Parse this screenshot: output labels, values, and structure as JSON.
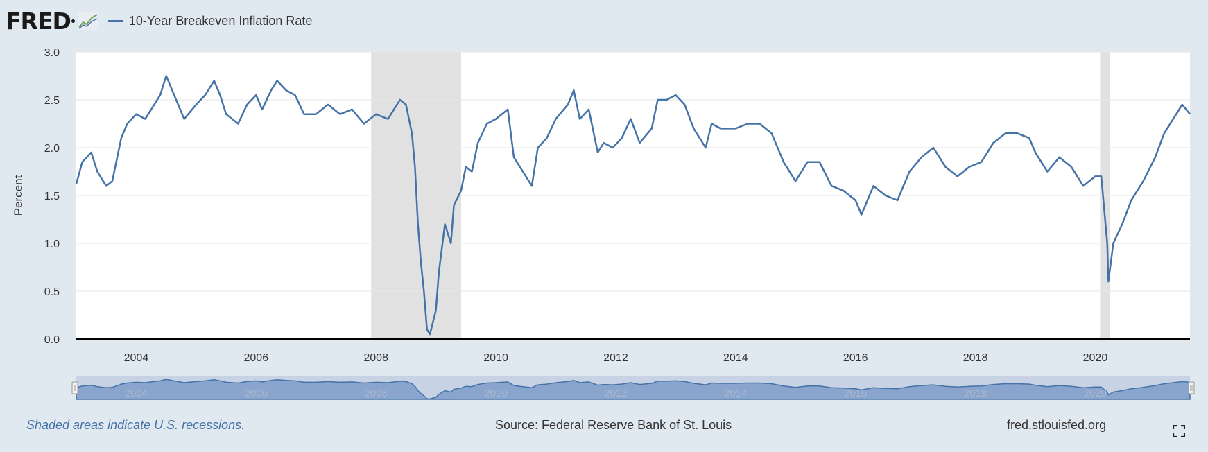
{
  "header": {
    "logo_text": "FRED",
    "legend_label": "10-Year Breakeven Inflation Rate"
  },
  "footer": {
    "recession_note": "Shaded areas indicate U.S. recessions.",
    "source": "Source: Federal Reserve Bank of St. Louis",
    "site": "fred.stlouisfed.org"
  },
  "colors": {
    "series": "#4572a7",
    "recession": "#e1e1e1",
    "navigator_fill": "#7f9cc9",
    "background": "#e1e9f0"
  },
  "chart_data": {
    "type": "line",
    "title": "10-Year Breakeven Inflation Rate",
    "ylabel": "Percent",
    "xlabel": "",
    "xlim": [
      2003.0,
      2021.58
    ],
    "ylim": [
      0,
      3.0
    ],
    "y_ticks": [
      "0.0",
      "0.5",
      "1.0",
      "1.5",
      "2.0",
      "2.5",
      "3.0"
    ],
    "x_ticks": [
      "2004",
      "2006",
      "2008",
      "2010",
      "2012",
      "2014",
      "2016",
      "2018",
      "2020"
    ],
    "recessions": [
      [
        2007.92,
        2009.42
      ],
      [
        2020.08,
        2020.25
      ]
    ],
    "series": [
      {
        "name": "10-Year Breakeven Inflation Rate",
        "x": [
          2003.0,
          2003.1,
          2003.25,
          2003.35,
          2003.5,
          2003.6,
          2003.75,
          2003.85,
          2004.0,
          2004.15,
          2004.3,
          2004.4,
          2004.5,
          2004.7,
          2004.8,
          2005.0,
          2005.15,
          2005.3,
          2005.4,
          2005.5,
          2005.7,
          2005.85,
          2006.0,
          2006.1,
          2006.25,
          2006.35,
          2006.5,
          2006.65,
          2006.8,
          2007.0,
          2007.2,
          2007.4,
          2007.6,
          2007.8,
          2008.0,
          2008.2,
          2008.4,
          2008.5,
          2008.6,
          2008.65,
          2008.7,
          2008.75,
          2008.8,
          2008.85,
          2008.9,
          2009.0,
          2009.05,
          2009.15,
          2009.25,
          2009.3,
          2009.42,
          2009.5,
          2009.6,
          2009.7,
          2009.85,
          2010.0,
          2010.2,
          2010.3,
          2010.45,
          2010.6,
          2010.7,
          2010.85,
          2011.0,
          2011.2,
          2011.3,
          2011.4,
          2011.55,
          2011.7,
          2011.8,
          2011.95,
          2012.1,
          2012.25,
          2012.4,
          2012.6,
          2012.7,
          2012.85,
          2013.0,
          2013.15,
          2013.3,
          2013.5,
          2013.6,
          2013.75,
          2014.0,
          2014.2,
          2014.4,
          2014.6,
          2014.8,
          2015.0,
          2015.2,
          2015.4,
          2015.6,
          2015.8,
          2016.0,
          2016.1,
          2016.3,
          2016.5,
          2016.7,
          2016.9,
          2017.1,
          2017.3,
          2017.5,
          2017.7,
          2017.9,
          2018.1,
          2018.3,
          2018.5,
          2018.7,
          2018.9,
          2019.0,
          2019.2,
          2019.4,
          2019.6,
          2019.8,
          2020.0,
          2020.1,
          2020.2,
          2020.22,
          2020.3,
          2020.45,
          2020.6,
          2020.8,
          2021.0,
          2021.15,
          2021.3,
          2021.45,
          2021.58
        ],
        "y": [
          1.62,
          1.85,
          1.95,
          1.75,
          1.6,
          1.65,
          2.1,
          2.25,
          2.35,
          2.3,
          2.45,
          2.55,
          2.75,
          2.45,
          2.3,
          2.45,
          2.55,
          2.7,
          2.55,
          2.35,
          2.25,
          2.45,
          2.55,
          2.4,
          2.6,
          2.7,
          2.6,
          2.55,
          2.35,
          2.35,
          2.45,
          2.35,
          2.4,
          2.25,
          2.35,
          2.3,
          2.5,
          2.45,
          2.15,
          1.8,
          1.2,
          0.8,
          0.5,
          0.1,
          0.05,
          0.3,
          0.7,
          1.2,
          1.0,
          1.4,
          1.55,
          1.8,
          1.75,
          2.05,
          2.25,
          2.3,
          2.4,
          1.9,
          1.75,
          1.6,
          2.0,
          2.1,
          2.3,
          2.45,
          2.6,
          2.3,
          2.4,
          1.95,
          2.05,
          2.0,
          2.1,
          2.3,
          2.05,
          2.2,
          2.5,
          2.5,
          2.55,
          2.45,
          2.2,
          2.0,
          2.25,
          2.2,
          2.2,
          2.25,
          2.25,
          2.15,
          1.85,
          1.65,
          1.85,
          1.85,
          1.6,
          1.55,
          1.45,
          1.3,
          1.6,
          1.5,
          1.45,
          1.75,
          1.9,
          2.0,
          1.8,
          1.7,
          1.8,
          1.85,
          2.05,
          2.15,
          2.15,
          2.1,
          1.95,
          1.75,
          1.9,
          1.8,
          1.6,
          1.7,
          1.7,
          1.0,
          0.6,
          1.0,
          1.2,
          1.45,
          1.65,
          1.9,
          2.15,
          2.3,
          2.45,
          2.35
        ]
      }
    ]
  }
}
